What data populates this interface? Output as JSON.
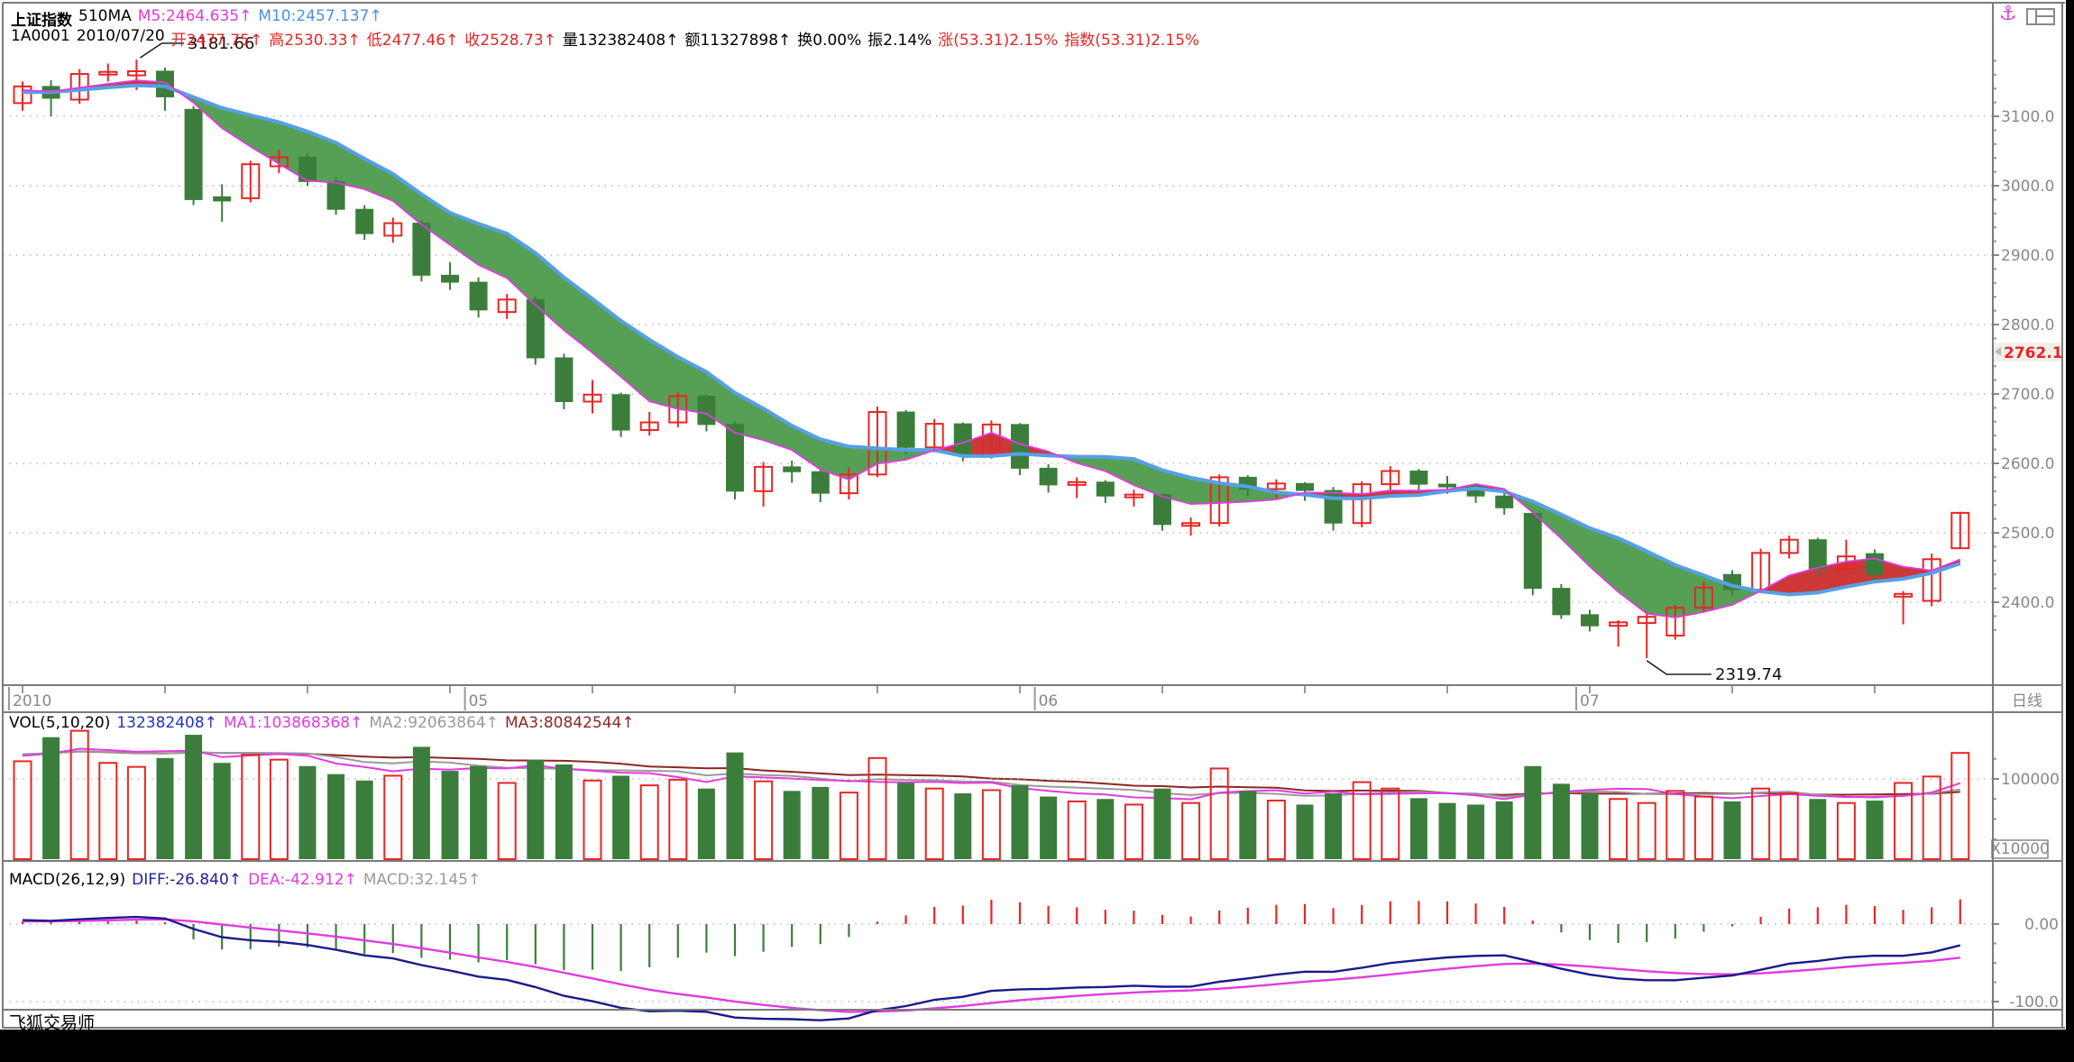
{
  "header": {
    "line1": [
      {
        "text": "上证指数",
        "color": "#000000",
        "bold": true
      },
      {
        "text": "510MA",
        "color": "#000000"
      },
      {
        "text": "M5:2464.635↑",
        "color": "#e23ae2"
      },
      {
        "text": "M10:2457.137↑",
        "color": "#4a90e0"
      }
    ],
    "line2": [
      {
        "text": "1A0001",
        "color": "#000000"
      },
      {
        "text": "2010/07/20",
        "color": "#000000"
      },
      {
        "text": "开2477.75↑",
        "color": "#e62626"
      },
      {
        "text": "高2530.33↑",
        "color": "#e62626"
      },
      {
        "text": "低2477.46↑",
        "color": "#e62626"
      },
      {
        "text": "收2528.73↑",
        "color": "#e62626"
      },
      {
        "text": "量132382408↑",
        "color": "#000000"
      },
      {
        "text": "额11327898↑",
        "color": "#000000"
      },
      {
        "text": "换0.00%",
        "color": "#000000"
      },
      {
        "text": "振2.14%",
        "color": "#000000"
      },
      {
        "text": "涨(53.31)2.15%",
        "color": "#e62626"
      },
      {
        "text": "指数(53.31)2.15%",
        "color": "#e62626"
      }
    ]
  },
  "vol_header": [
    {
      "text": "VOL(5,10,20)",
      "color": "#000000"
    },
    {
      "text": "132382408↑",
      "color": "#2233bb"
    },
    {
      "text": "MA1:103868368↑",
      "color": "#e23ae2"
    },
    {
      "text": "MA2:92063864↑",
      "color": "#9a9a9a"
    },
    {
      "text": "MA3:80842544↑",
      "color": "#8c2626"
    }
  ],
  "macd_header": [
    {
      "text": "MACD(26,12,9)",
      "color": "#000000"
    },
    {
      "text": "DIFF:-26.840↑",
      "color": "#2020a0"
    },
    {
      "text": "DEA:-42.912↑",
      "color": "#e23ae2"
    },
    {
      "text": "MACD:32.145↑",
      "color": "#9a9a9a"
    }
  ],
  "price_axis": {
    "labels": [
      "3100.0",
      "3000.0",
      "2900.0",
      "2800.0",
      "2700.0",
      "2600.0",
      "2500.0",
      "2400.0"
    ],
    "current_price": "2762.1"
  },
  "vol_axis": {
    "label": "100000",
    "multiplier": "X10000"
  },
  "macd_axis": {
    "labels": [
      "0.00",
      "-100.0"
    ]
  },
  "timeline": {
    "labels": [
      {
        "text": "2010",
        "index": 0
      },
      {
        "text": "05",
        "index": 16
      },
      {
        "text": "06",
        "index": 36
      },
      {
        "text": "07",
        "index": 55
      }
    ],
    "period_label": "日线"
  },
  "annotations": {
    "high": "3181.66",
    "low": "2319.74"
  },
  "status_bar": {
    "app_name": "飞狐交易师"
  },
  "icons": {
    "anchor": "⚓",
    "window_layout": "window-layout-icon"
  },
  "colors": {
    "up": "#e62626",
    "down": "#3b7e3b",
    "band_bear": "#55a055",
    "band_bull": "#cc3838",
    "ma5": "#e23ae2",
    "ma10": "#55a0e8",
    "vol_ma1": "#e23ae2",
    "vol_ma2": "#9a9a9a",
    "vol_ma3": "#8c2626",
    "diff": "#1a1a8c",
    "dea": "#e23ae2",
    "axis_text": "#888888",
    "grid": "#aaaaaa",
    "frame": "#7a7a7a",
    "tag_text": "#e62626",
    "tag_bg": "#f2efe9"
  },
  "chart_data": {
    "type": "candlestick",
    "title": "上证指数 1A0001 日线",
    "date_range": "2010/04 - 2010/07/20",
    "panes": [
      "price",
      "volume",
      "macd"
    ],
    "price": {
      "ylim": [
        2283,
        3228
      ],
      "gridlines": [
        3100,
        3000,
        2900,
        2800,
        2700,
        2600,
        2500,
        2400
      ],
      "high_annotation": 3181.66,
      "low_annotation": 2319.74,
      "last_close": 2528.73,
      "ma_periods": [
        5,
        10
      ],
      "ma5_last": 2464.635,
      "ma10_last": 2457.137,
      "ohlc": [
        [
          3119,
          3150,
          3108,
          3143
        ],
        [
          3143,
          3152,
          3100,
          3126
        ],
        [
          3124,
          3168,
          3118,
          3161
        ],
        [
          3161,
          3176,
          3150,
          3164
        ],
        [
          3159,
          3181.66,
          3138,
          3165
        ],
        [
          3165,
          3170,
          3108,
          3128
        ],
        [
          3110,
          3115,
          2972,
          2980
        ],
        [
          2984,
          3002,
          2948,
          2978
        ],
        [
          2982,
          3036,
          2976,
          3031
        ],
        [
          3028,
          3052,
          3018,
          3041
        ],
        [
          3041,
          3046,
          3000,
          3006
        ],
        [
          3006,
          3012,
          2958,
          2966
        ],
        [
          2966,
          2972,
          2922,
          2931
        ],
        [
          2928,
          2954,
          2918,
          2946
        ],
        [
          2946,
          2950,
          2862,
          2871
        ],
        [
          2871,
          2890,
          2850,
          2861
        ],
        [
          2861,
          2868,
          2810,
          2821
        ],
        [
          2818,
          2844,
          2808,
          2836
        ],
        [
          2836,
          2840,
          2742,
          2752
        ],
        [
          2752,
          2758,
          2678,
          2689
        ],
        [
          2689,
          2720,
          2672,
          2699
        ],
        [
          2699,
          2702,
          2638,
          2648
        ],
        [
          2648,
          2674,
          2640,
          2659
        ],
        [
          2659,
          2702,
          2652,
          2697
        ],
        [
          2697,
          2699,
          2646,
          2656
        ],
        [
          2656,
          2660,
          2548,
          2560
        ],
        [
          2560,
          2602,
          2538,
          2595
        ],
        [
          2595,
          2604,
          2572,
          2588
        ],
        [
          2588,
          2590,
          2544,
          2557
        ],
        [
          2557,
          2594,
          2548,
          2584
        ],
        [
          2584,
          2682,
          2580,
          2674
        ],
        [
          2674,
          2677,
          2613,
          2623
        ],
        [
          2623,
          2664,
          2616,
          2657
        ],
        [
          2657,
          2659,
          2603,
          2611
        ],
        [
          2611,
          2662,
          2607,
          2656
        ],
        [
          2656,
          2658,
          2583,
          2593
        ],
        [
          2593,
          2599,
          2558,
          2569
        ],
        [
          2569,
          2580,
          2550,
          2573
        ],
        [
          2573,
          2576,
          2543,
          2553
        ],
        [
          2553,
          2562,
          2538,
          2555
        ],
        [
          2555,
          2557,
          2503,
          2512
        ],
        [
          2512,
          2522,
          2496,
          2514
        ],
        [
          2514,
          2584,
          2509,
          2580
        ],
        [
          2580,
          2583,
          2553,
          2563
        ],
        [
          2563,
          2577,
          2550,
          2571
        ],
        [
          2571,
          2573,
          2546,
          2561
        ],
        [
          2561,
          2566,
          2503,
          2514
        ],
        [
          2514,
          2574,
          2508,
          2570
        ],
        [
          2570,
          2596,
          2560,
          2589
        ],
        [
          2589,
          2592,
          2560,
          2570
        ],
        [
          2570,
          2582,
          2556,
          2568
        ],
        [
          2568,
          2571,
          2543,
          2553
        ],
        [
          2553,
          2559,
          2526,
          2536
        ],
        [
          2528,
          2532,
          2410,
          2420
        ],
        [
          2420,
          2426,
          2376,
          2382
        ],
        [
          2382,
          2389,
          2358,
          2366
        ],
        [
          2366,
          2374,
          2336,
          2371
        ],
        [
          2370,
          2386,
          2319.74,
          2379
        ],
        [
          2352,
          2396,
          2346,
          2392
        ],
        [
          2392,
          2430,
          2386,
          2421
        ],
        [
          2440,
          2446,
          2410,
          2418
        ],
        [
          2418,
          2477,
          2414,
          2471
        ],
        [
          2471,
          2496,
          2463,
          2490
        ],
        [
          2490,
          2493,
          2438,
          2448
        ],
        [
          2448,
          2490,
          2444,
          2466
        ],
        [
          2470,
          2476,
          2432,
          2440
        ],
        [
          2408,
          2416,
          2368,
          2412
        ],
        [
          2402,
          2470,
          2394,
          2462
        ],
        [
          2477.75,
          2530.33,
          2477.46,
          2528.73
        ]
      ]
    },
    "volume": {
      "unit_multiplier": "X10000",
      "gridline": 100000,
      "ma_periods": [
        5,
        10,
        20
      ],
      "ma1_last": 103868368,
      "ma2_last": 92063864,
      "ma3_last": 80842544,
      "values": [
        122000,
        152000,
        160000,
        120000,
        115000,
        126000,
        155000,
        120000,
        130000,
        124000,
        116000,
        106000,
        98000,
        104000,
        140000,
        110000,
        116000,
        95000,
        124000,
        118000,
        98000,
        104000,
        92000,
        99000,
        88000,
        133000,
        97000,
        85000,
        90000,
        83000,
        126000,
        95000,
        88000,
        82000,
        86000,
        92000,
        78000,
        72000,
        75000,
        68000,
        88000,
        70000,
        113000,
        85000,
        73000,
        68000,
        82000,
        96000,
        88000,
        76000,
        70000,
        68000,
        72000,
        116000,
        94000,
        82000,
        75000,
        70000,
        85000,
        78000,
        72000,
        88000,
        82000,
        75000,
        70000,
        73000,
        95000,
        103000,
        132382
      ]
    },
    "macd": {
      "params": [
        26,
        12,
        9
      ],
      "gridlines": [
        0,
        -100
      ],
      "diff_last": -26.84,
      "dea_last": -42.912,
      "macd_last": 32.145
    },
    "x_axis": {
      "labels": [
        "2010",
        "05",
        "06",
        "07"
      ],
      "period": "日线"
    }
  }
}
